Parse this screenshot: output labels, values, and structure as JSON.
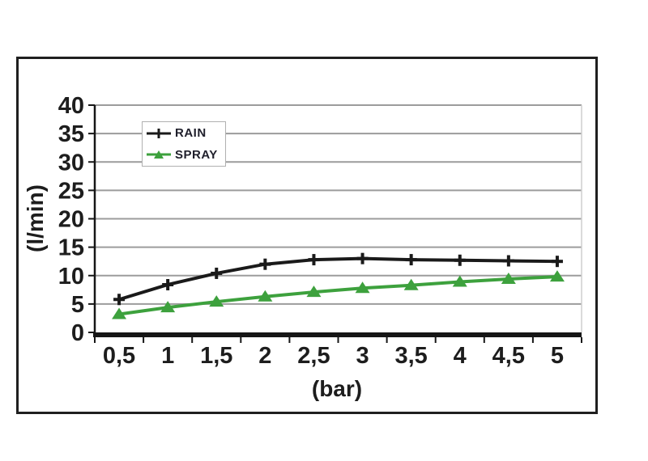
{
  "figure": {
    "frame_border_color": "#1f1f1f",
    "background_color": "#ffffff"
  },
  "chart_data": {
    "type": "line",
    "title": "",
    "x": [
      0.5,
      1,
      1.5,
      2,
      2.5,
      3,
      3.5,
      4,
      4.5,
      5
    ],
    "x_tick_labels": [
      "0,5",
      "1",
      "1,5",
      "2",
      "2,5",
      "3",
      "3,5",
      "4",
      "4,5",
      "5"
    ],
    "series": [
      {
        "name": "RAIN",
        "color": "#1a1a1a",
        "marker": "plus",
        "values": [
          5.8,
          8.4,
          10.4,
          12.0,
          12.8,
          13.0,
          12.8,
          12.7,
          12.6,
          12.5
        ]
      },
      {
        "name": "SPRAY",
        "color": "#3da13d",
        "marker": "triangle",
        "values": [
          3.2,
          4.4,
          5.4,
          6.3,
          7.1,
          7.8,
          8.3,
          8.9,
          9.4,
          9.8
        ]
      }
    ],
    "xlabel": "(bar)",
    "ylabel": "(l/min)",
    "ylim": [
      0,
      40
    ],
    "ytick_step": 5,
    "y_tick_labels": [
      "0",
      "5",
      "10",
      "15",
      "20",
      "25",
      "30",
      "35",
      "40"
    ],
    "grid": true,
    "gridline_color": "#9c9c9c",
    "axis_color": "#161616",
    "tick_label_color": "#1d1d1d",
    "legend_position": "top-left-inside"
  }
}
